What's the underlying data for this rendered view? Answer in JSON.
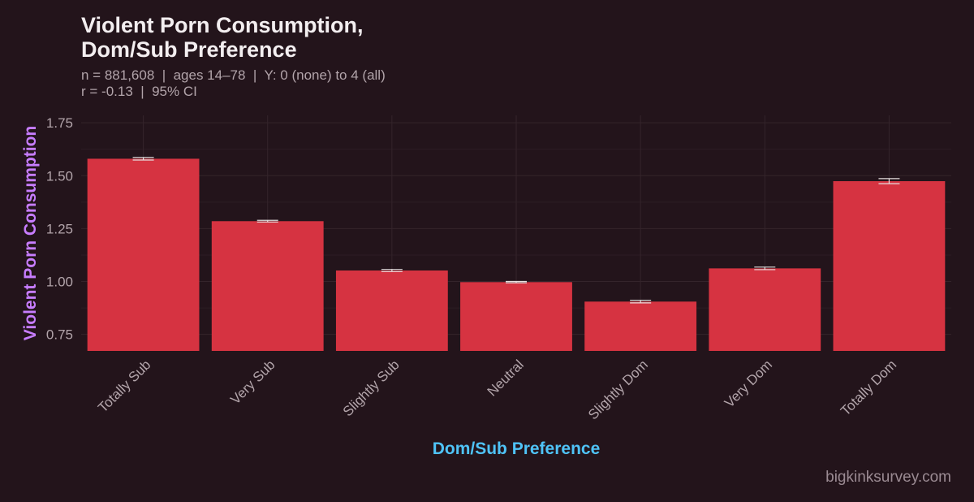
{
  "chart_data": {
    "type": "bar",
    "title_line1": "Violent Porn Consumption,",
    "title_line2": "Dom/Sub Preference",
    "subtitle_line1": "n = 881,608  |  ages 14–78  |  Y: 0 (none) to 4 (all)",
    "subtitle_line2": "r = -0.13  |  95% CI",
    "xlabel": "Dom/Sub Preference",
    "ylabel": "Violent Porn Consumption",
    "categories": [
      "Totally Sub",
      "Very Sub",
      "Slightly Sub",
      "Neutral",
      "Slightly Dom",
      "Very Dom",
      "Totally Dom"
    ],
    "values": [
      1.58,
      1.285,
      1.052,
      0.997,
      0.905,
      1.062,
      1.474
    ],
    "ci_low": [
      1.574,
      1.281,
      1.047,
      0.994,
      0.899,
      1.056,
      1.462
    ],
    "ci_high": [
      1.586,
      1.289,
      1.057,
      1.0,
      0.911,
      1.068,
      1.486
    ],
    "yticks": [
      "0.75",
      "1.00",
      "1.25",
      "1.50",
      "1.75"
    ],
    "ylim": [
      0.672,
      1.785
    ],
    "grid": true,
    "bar_color": "#d63341",
    "background_color": "#23141b",
    "xlabel_color": "#4fc3f7",
    "ylabel_color": "#c77dff"
  },
  "watermark": "bigkinksurvey.com"
}
